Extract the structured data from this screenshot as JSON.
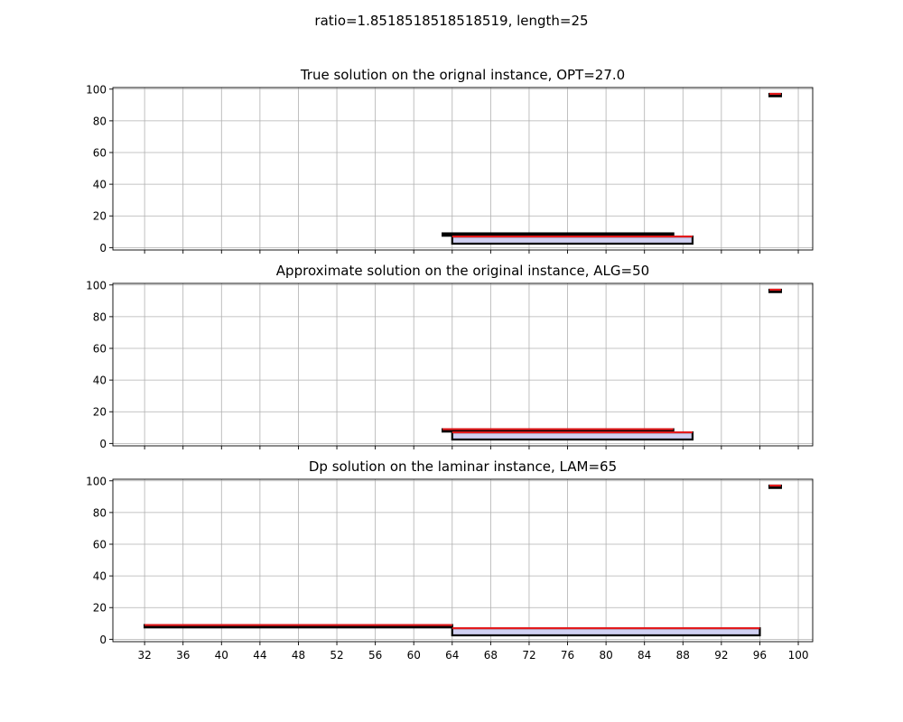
{
  "figure": {
    "suptitle": "ratio=1.8518518518518519, length=25"
  },
  "chart_data": [
    {
      "type": "interval-rectangles",
      "title": "True solution on the orignal instance, OPT=27.0",
      "xlim": [
        28.7,
        101.5
      ],
      "ylim": [
        -1.5,
        101
      ],
      "x_ticks": [
        32,
        36,
        40,
        44,
        48,
        52,
        56,
        60,
        64,
        68,
        72,
        76,
        80,
        84,
        88,
        92,
        96,
        100
      ],
      "x_tick_labels_shown": false,
      "y_ticks": [
        0,
        20,
        40,
        60,
        80,
        100
      ],
      "grid": true,
      "rectangles": [
        {
          "x0": 63,
          "x1": 87,
          "y0": 7.5,
          "y1": 9,
          "fill": "#000000",
          "top_edge": "#000000"
        },
        {
          "x0": 64,
          "x1": 89,
          "y0": 2.5,
          "y1": 7,
          "fill": "#d0d0f2",
          "top_edge": "#e41a1c"
        },
        {
          "x0": 97,
          "x1": 98.2,
          "y0": 95.5,
          "y1": 97,
          "fill": "#000000",
          "top_edge": "#e41a1c"
        }
      ]
    },
    {
      "type": "interval-rectangles",
      "title": "Approximate solution on the original instance, ALG=50",
      "xlim": [
        28.7,
        101.5
      ],
      "ylim": [
        -1.5,
        101
      ],
      "x_ticks": [
        32,
        36,
        40,
        44,
        48,
        52,
        56,
        60,
        64,
        68,
        72,
        76,
        80,
        84,
        88,
        92,
        96,
        100
      ],
      "x_tick_labels_shown": false,
      "y_ticks": [
        0,
        20,
        40,
        60,
        80,
        100
      ],
      "grid": true,
      "rectangles": [
        {
          "x0": 63,
          "x1": 87,
          "y0": 7.5,
          "y1": 9,
          "fill": "#000000",
          "top_edge": "#e41a1c"
        },
        {
          "x0": 64,
          "x1": 89,
          "y0": 2.5,
          "y1": 7,
          "fill": "#d0d0f2",
          "top_edge": "#e41a1c"
        },
        {
          "x0": 97,
          "x1": 98.2,
          "y0": 95.5,
          "y1": 97,
          "fill": "#000000",
          "top_edge": "#e41a1c"
        }
      ]
    },
    {
      "type": "interval-rectangles",
      "title": "Dp solution on the laminar instance, LAM=65",
      "xlim": [
        28.7,
        101.5
      ],
      "ylim": [
        -1.5,
        101
      ],
      "x_ticks": [
        32,
        36,
        40,
        44,
        48,
        52,
        56,
        60,
        64,
        68,
        72,
        76,
        80,
        84,
        88,
        92,
        96,
        100
      ],
      "x_tick_labels_shown": true,
      "y_ticks": [
        0,
        20,
        40,
        60,
        80,
        100
      ],
      "grid": true,
      "rectangles": [
        {
          "x0": 32,
          "x1": 64,
          "y0": 7.5,
          "y1": 9,
          "fill": "#000000",
          "top_edge": "#e41a1c"
        },
        {
          "x0": 64,
          "x1": 96,
          "y0": 2.5,
          "y1": 7,
          "fill": "#d0d0f2",
          "top_edge": "#e41a1c"
        },
        {
          "x0": 97,
          "x1": 98.2,
          "y0": 95.5,
          "y1": 97,
          "fill": "#000000",
          "top_edge": "#e41a1c"
        }
      ]
    }
  ]
}
